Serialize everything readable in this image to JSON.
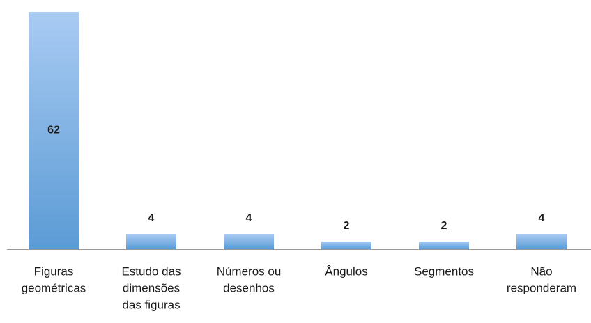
{
  "chart_data": {
    "type": "bar",
    "categories": [
      [
        "Figuras",
        "geométricas"
      ],
      [
        "Estudo das",
        "dimensões",
        "das figuras"
      ],
      [
        "Números ou",
        "desenhos"
      ],
      [
        "Ângulos"
      ],
      [
        "Segmentos"
      ],
      [
        "Não",
        "responderam"
      ]
    ],
    "values": [
      62,
      4,
      4,
      2,
      2,
      4
    ],
    "color": "#5b9bd5"
  }
}
